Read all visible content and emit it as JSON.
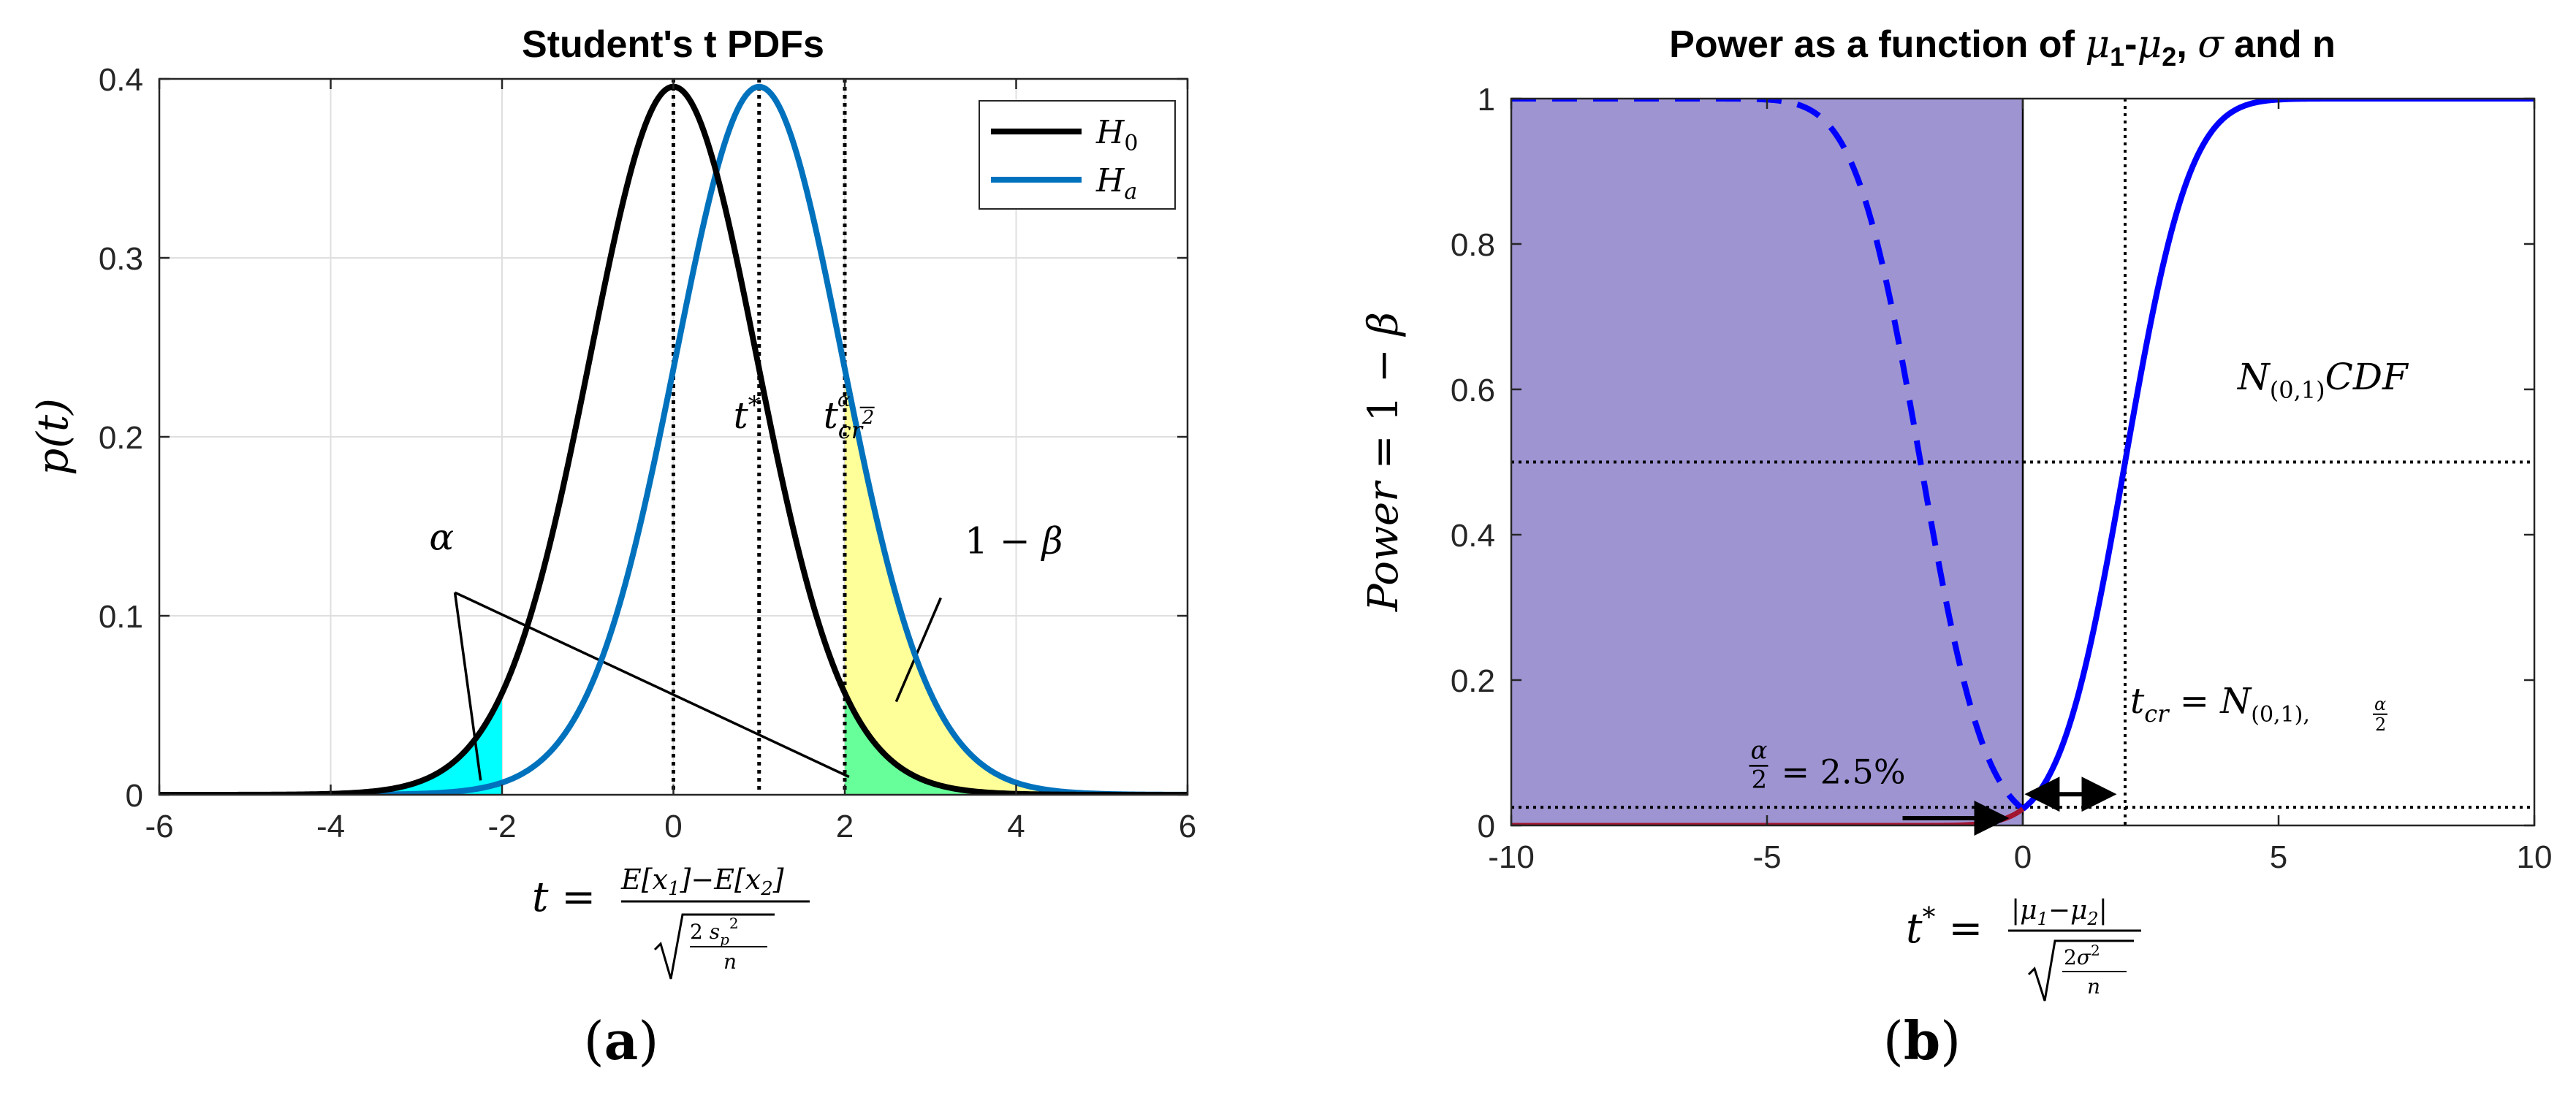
{
  "chart_data": [
    {
      "type": "line",
      "panel_label": "(a)",
      "title": "Student's t PDFs",
      "xlabel": "t = E[x1]−E[x2] / √(2 s_p² / n)",
      "ylabel": "p(t)",
      "xlim": [
        -6,
        6
      ],
      "ylim": [
        0,
        0.4
      ],
      "xticks": [
        -6,
        -4,
        -2,
        0,
        2,
        4,
        6
      ],
      "yticks": [
        0,
        0.1,
        0.2,
        0.3,
        0.4
      ],
      "grid": true,
      "legend_position": "top-right",
      "series": [
        {
          "name": "H0",
          "type": "t-pdf",
          "center": 0,
          "color": "#000000"
        },
        {
          "name": "Ha",
          "type": "t-pdf",
          "center": 1,
          "color": "#0072BD"
        }
      ],
      "vertical_lines": [
        0,
        1,
        2
      ],
      "shaded_regions": [
        {
          "label": "α",
          "from": -6,
          "to": -2,
          "under": "H0",
          "color": "#00FFFF"
        },
        {
          "label": "α",
          "from": 2,
          "to": 6,
          "under": "H0",
          "color": "#66FF99"
        },
        {
          "label": "1 − β",
          "from": 2,
          "to": 6,
          "under": "Ha",
          "color": "#FFFF99"
        }
      ],
      "annotations": [
        {
          "text": "α",
          "x": -2.85,
          "y": 0.137
        },
        {
          "text": "t*",
          "x": 0.7,
          "y": 0.205
        },
        {
          "text": "t_cr^(α/2)",
          "x": 1.75,
          "y": 0.205
        },
        {
          "text": "1 − β",
          "x": 3.4,
          "y": 0.135
        }
      ]
    },
    {
      "type": "line",
      "panel_label": "(b)",
      "title": "Power as a function of μ1-μ2, σ and n",
      "xlabel": "t* = |μ1−μ2| / √(2σ²/n)",
      "ylabel": "Power = 1 − β",
      "xlim": [
        -10,
        10
      ],
      "ylim": [
        0,
        1
      ],
      "xticks": [
        -10,
        -5,
        0,
        5,
        10
      ],
      "yticks": [
        0,
        0.2,
        0.4,
        0.6,
        0.8,
        1
      ],
      "grid": false,
      "series": [
        {
          "name": "",
          "type": "normal-cdf",
          "center": 2,
          "style": "solid",
          "domain": [
            0,
            10
          ],
          "color": "#0000FF"
        },
        {
          "name": "",
          "type": "normal-cdf-mirrored",
          "center": -2,
          "style": "dashed",
          "domain": [
            -10,
            0
          ],
          "color": "#0000FF"
        },
        {
          "name": "",
          "type": "normal-cdf",
          "center": 2,
          "style": "solid",
          "domain": [
            -10,
            0
          ],
          "color": "#A2142F"
        }
      ],
      "shaded_regions": [
        {
          "from": -10,
          "to": 0,
          "y_from": 0,
          "y_to": 1,
          "color": "#9E94D2"
        }
      ],
      "horizontal_lines": [
        0.5,
        0.025
      ],
      "vertical_lines": [
        2
      ],
      "annotations": [
        {
          "text": "N(0,1) CDF",
          "x": 4.2,
          "y": 0.6
        },
        {
          "text": "t_cr = N(0,1),α/2",
          "x": 5.2,
          "y": 0.155
        },
        {
          "text": "α/2 = 2.5%",
          "x": -3.5,
          "y": 0.075
        }
      ]
    }
  ]
}
